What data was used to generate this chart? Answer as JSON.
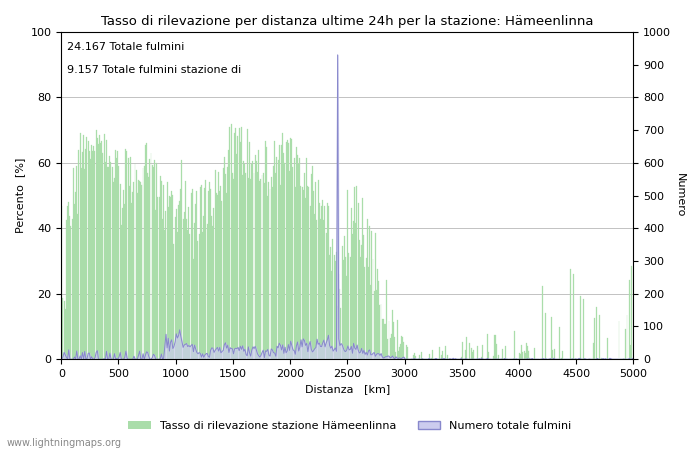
{
  "title": "Tasso di rilevazione per distanza ultime 24h per la stazione: Hämeenlinna",
  "xlabel": "Distanza   [km]",
  "ylabel_left": "Percento  [%]",
  "ylabel_right": "Numero",
  "annotation_line1": "24.167 Totale fulmini",
  "annotation_line2": "9.157 Totale fulmini stazione di",
  "legend_label1": "Tasso di rilevazione stazione Hämeenlinna",
  "legend_label2": "Numero totale fulmini",
  "watermark": "www.lightningmaps.org",
  "xlim": [
    0,
    5000
  ],
  "ylim_left": [
    0,
    100
  ],
  "ylim_right": [
    0,
    1000
  ],
  "x_ticks": [
    0,
    500,
    1000,
    1500,
    2000,
    2500,
    3000,
    3500,
    4000,
    4500,
    5000
  ],
  "y_ticks_left": [
    0,
    20,
    40,
    60,
    80,
    100
  ],
  "y_ticks_right": [
    0,
    100,
    200,
    300,
    400,
    500,
    600,
    700,
    800,
    900,
    1000
  ],
  "color_green": "#aaddaa",
  "color_blue_line": "#8888cc",
  "color_blue_fill": "#ccccee",
  "figsize": [
    7.0,
    4.5
  ],
  "dpi": 100
}
